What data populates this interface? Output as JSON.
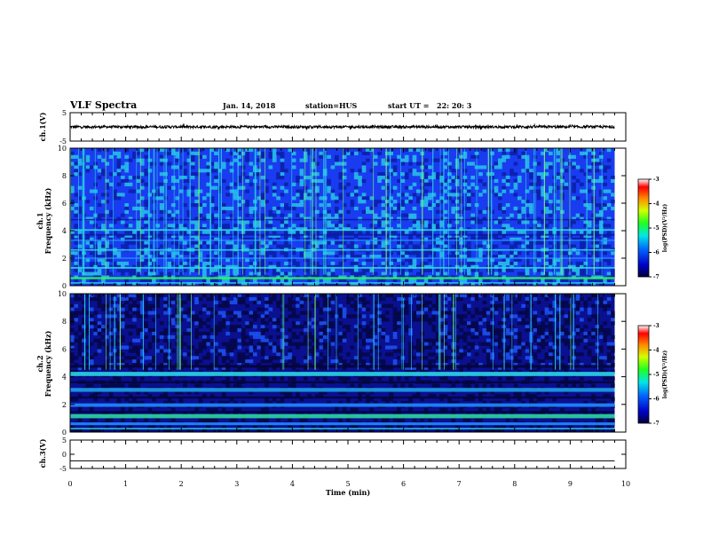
{
  "header": {
    "title": "VLF Spectra",
    "date": "Jan. 14, 2018",
    "station": "station=HUS",
    "start": "start UT =",
    "start_time": "22: 20: 3"
  },
  "chart_data": [
    {
      "type": "line",
      "id": "ch1-waveform",
      "ylabel": "ch.1(V)",
      "ylim": [
        -5,
        5
      ],
      "yticks": [
        "5",
        "-5"
      ],
      "xlim": [
        0,
        10
      ],
      "note_values": "waveform amplitude roughly within -0.5 to +0.5 V across 0 to 9.8 min"
    },
    {
      "type": "heatmap",
      "id": "ch1-spectrogram",
      "ylabel": "ch.1\nFrequency (kHz)",
      "ylabel_line1": "ch.1",
      "ylabel_line2": "Frequency (kHz)",
      "ylim": [
        0,
        10
      ],
      "yticks": [
        "10",
        "8",
        "6",
        "4",
        "2",
        "0"
      ],
      "xlim": [
        0,
        10
      ],
      "data_end_min": 9.8,
      "colorbar": {
        "label": "log(PSD)(V²/Hz)",
        "ticks": [
          "-3",
          "-4",
          "-5",
          "-6",
          "-7"
        ],
        "range": [
          -7,
          -3
        ]
      }
    },
    {
      "type": "heatmap",
      "id": "ch2-spectrogram",
      "ylabel_line1": "ch.2",
      "ylabel_line2": "Frequency (kHz)",
      "ylim": [
        0,
        10
      ],
      "yticks": [
        "10",
        "8",
        "6",
        "4",
        "2",
        "0"
      ],
      "xlim": [
        0,
        10
      ],
      "data_end_min": 9.8,
      "colorbar": {
        "label": "log(PSD)(V²/Hz)",
        "ticks": [
          "-3",
          "-4",
          "-5",
          "-6",
          "-7"
        ],
        "range": [
          -7,
          -3
        ]
      }
    },
    {
      "type": "line",
      "id": "ch3-waveform",
      "ylabel": "ch.3(V)",
      "ylim": [
        -5,
        5
      ],
      "yticks": [
        "5",
        "0",
        "-5"
      ],
      "xlim": [
        0,
        10
      ],
      "values_const": -2.3
    }
  ],
  "xaxis": {
    "label": "Time (min)",
    "ticks": [
      "0",
      "1",
      "2",
      "3",
      "4",
      "5",
      "6",
      "7",
      "8",
      "9",
      "10"
    ]
  },
  "colors": {
    "spec_dark": "#0a0a6e",
    "spec_blue": "#1a3cff",
    "spec_cyan": "#2ad6e6",
    "spec_green": "#2bff4a"
  }
}
